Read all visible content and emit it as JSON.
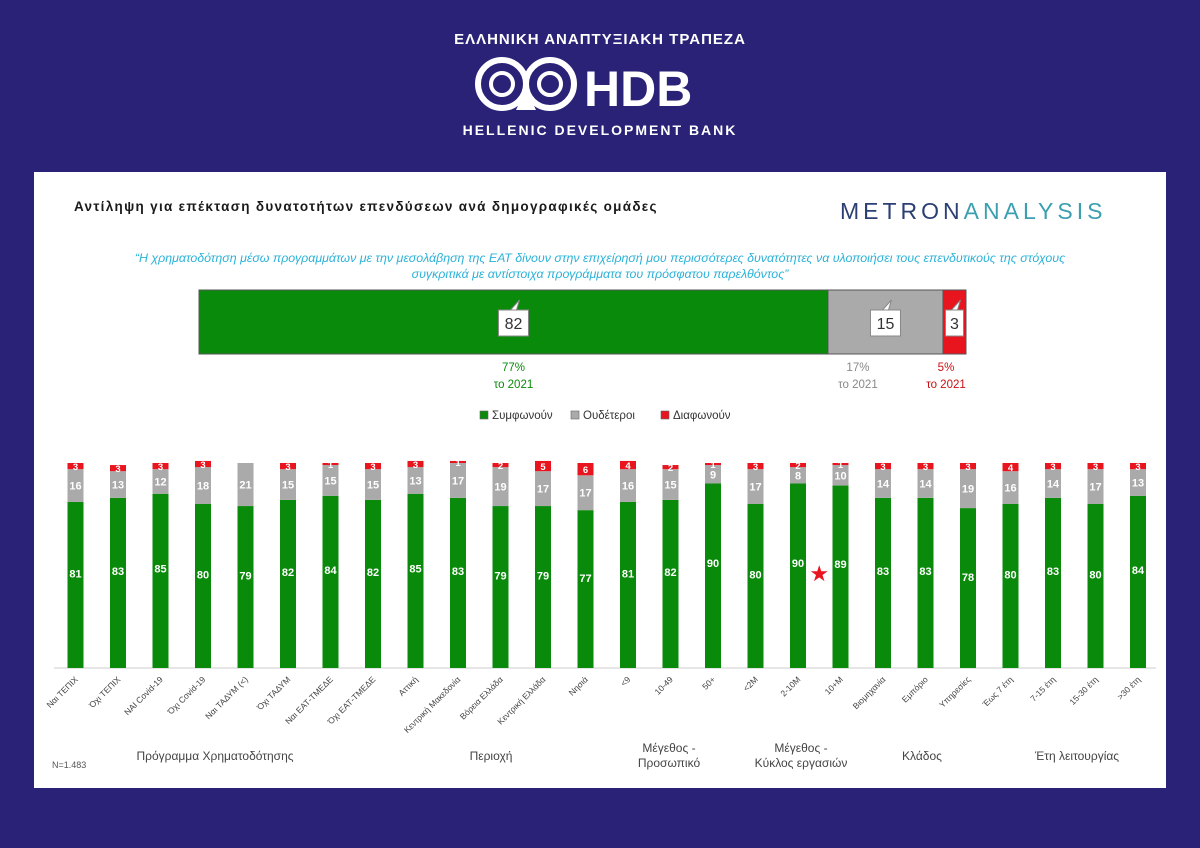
{
  "logo": {
    "top_text": "ΕΛΛΗΝΙΚΗ ΑΝΑΠΤΥΞΙΑΚΗ ΤΡΑΠΕΖΑ",
    "mark_text": "HDB",
    "bottom_text": "HELLENIC DEVELOPMENT BANK"
  },
  "panel": {
    "title": "Αντίληψη για επέκταση δυνατοτήτων επενδύσεων ανά δημογραφικές ομάδες",
    "brand_part1": "METRON",
    "brand_part2": "ANALYSIS",
    "quote_line1": "“Η χρηματοδότηση μέσω προγραμμάτων με την μεσολάβηση της ΕΑΤ δίνουν στην επιχείρησή μου περισσότερες δυνατότητες να υλοποιήσει τους επενδυτικούς της στόχους",
    "quote_line2": "συγκριτικά με αντίστοιχα προγράμματα του πρόσφατου παρελθόντος”",
    "sample_note": "N=1.483"
  },
  "colors": {
    "agree": "#0a8a0a",
    "neutral": "#aaaaaa",
    "disagree": "#e8141e",
    "background": "#2a2276"
  },
  "chart_data": [
    {
      "type": "bar",
      "orientation": "horizontal-stacked",
      "series": [
        {
          "name": "Συμφωνούν",
          "value": 82,
          "comparison": "77%",
          "comparison_label": "το 2021"
        },
        {
          "name": "Ουδέτεροι",
          "value": 15,
          "comparison": "17%",
          "comparison_label": "το 2021"
        },
        {
          "name": "Διαφωνούν",
          "value": 3,
          "comparison": "5%",
          "comparison_label": "το 2021"
        }
      ]
    },
    {
      "type": "bar",
      "orientation": "vertical-stacked",
      "legend": [
        "Συμφωνούν",
        "Ουδέτεροι",
        "Διαφωνούν"
      ],
      "legend_position": "top-center",
      "categories": [
        "Ναι ΤΕΠΙΧ",
        "Όχι ΤΕΠΙΧ",
        "ΝΑΙ Covid-19",
        "Όχι Covid-19",
        "Ναι ΤΑΔΥΜ (<)",
        "Όχι ΤΑΔΥΜ",
        "Ναι ΕΑΤ-ΤΜΕΔΕ",
        "Όχι ΕΑΤ-ΤΜΕΔΕ",
        "Αττική",
        "Κεντρική Μακεδονία",
        "Βόρεια Ελλάδα",
        "Κεντρική Ελλάδα",
        "Νησιά",
        "<9",
        "10-49",
        "50+",
        "<2M",
        "2-10M",
        "10+M",
        "Βιομηχανία",
        "Εμπόριο",
        "Υπηρεσίες",
        "Έως 7 έτη",
        "7-15 έτη",
        "15-30 έτη",
        ">30 έτη"
      ],
      "series": [
        {
          "name": "Συμφωνούν",
          "values": [
            81,
            83,
            85,
            80,
            79,
            82,
            84,
            82,
            85,
            83,
            79,
            79,
            77,
            81,
            82,
            90,
            80,
            90,
            89,
            83,
            83,
            78,
            80,
            83,
            80,
            84
          ]
        },
        {
          "name": "Ουδέτεροι",
          "values": [
            16,
            13,
            12,
            18,
            21,
            15,
            15,
            15,
            13,
            17,
            19,
            17,
            17,
            16,
            15,
            9,
            17,
            8,
            10,
            14,
            14,
            19,
            16,
            14,
            17,
            13
          ]
        },
        {
          "name": "Διαφωνούν",
          "values": [
            3,
            3,
            3,
            3,
            null,
            3,
            1,
            3,
            3,
            1,
            2,
            5,
            6,
            4,
            2,
            1,
            3,
            2,
            1,
            3,
            3,
            3,
            4,
            3,
            3,
            3
          ]
        }
      ],
      "groups": [
        {
          "label": "Πρόγραμμα Χρηματοδότησης",
          "start": 0,
          "end": 7
        },
        {
          "label": "Περιοχή",
          "start": 8,
          "end": 12
        },
        {
          "label": "Μέγεθος - Προσωπικό",
          "start": 13,
          "end": 15
        },
        {
          "label": "Μέγεθος - Κύκλος εργασιών",
          "start": 16,
          "end": 18
        },
        {
          "label": "Κλάδος",
          "start": 19,
          "end": 21
        },
        {
          "label": "Έτη λειτουργίας",
          "start": 22,
          "end": 25
        }
      ],
      "annotation": {
        "symbol": "★",
        "between": [
          17,
          18
        ]
      },
      "ylim": [
        0,
        100
      ],
      "grid": false
    }
  ]
}
